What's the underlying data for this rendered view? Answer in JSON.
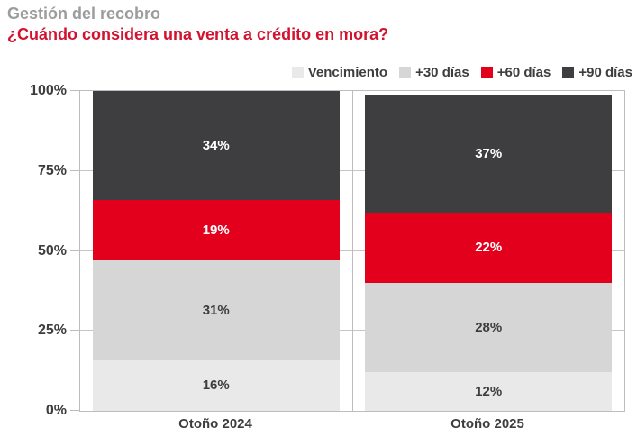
{
  "header": {
    "title": "Gestión del recobro",
    "subtitle": "¿Cuándo considera una venta a crédito en mora?"
  },
  "colors": {
    "kicker_gray": "#9c9c9c",
    "question_red": "#d2122e",
    "axis_border": "#bdbdbd",
    "gridline": "#c6c6c6",
    "axis_text": "#3d3d3d",
    "background": "#ffffff"
  },
  "chart_data": {
    "type": "bar",
    "stacked": true,
    "title": "Gestión del recobro",
    "subtitle": "¿Cuándo considera una venta a crédito en mora?",
    "categories": [
      "Otoño 2024",
      "Otoño 2025"
    ],
    "series": [
      {
        "name": "Vencimiento",
        "color": "#e9e9e9",
        "label_color": "#3d3d3d",
        "values": [
          16,
          12
        ]
      },
      {
        "name": "+30 días",
        "color": "#d6d6d6",
        "label_color": "#3d3d3d",
        "values": [
          31,
          28
        ]
      },
      {
        "name": "+60 días",
        "color": "#e2001c",
        "label_color": "#ffffff",
        "values": [
          19,
          22
        ]
      },
      {
        "name": "+90 días",
        "color": "#3e3e40",
        "label_color": "#ffffff",
        "values": [
          34,
          37
        ]
      }
    ],
    "ylim": [
      0,
      100
    ],
    "y_ticks": [
      0,
      25,
      50,
      75,
      100
    ],
    "y_tick_labels": [
      "0%",
      "25%",
      "50%",
      "75%",
      "100%"
    ],
    "value_suffix": "%",
    "grid": true,
    "legend_position": "top-right",
    "xlabel": "",
    "ylabel": ""
  }
}
